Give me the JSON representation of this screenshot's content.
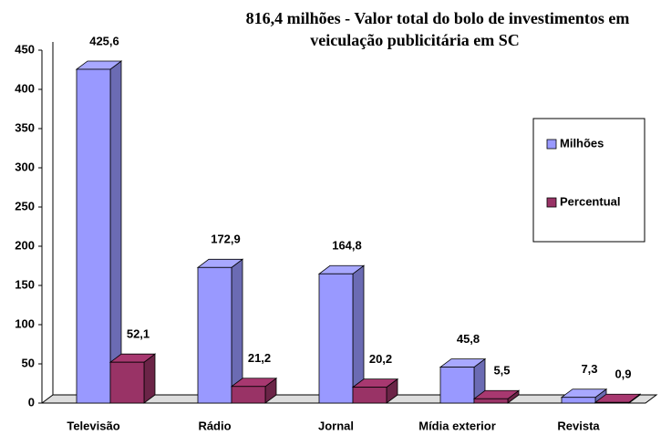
{
  "chart_data": {
    "type": "bar3d",
    "title": [
      "816,4 milhões - Valor total do bolo de investimentos em",
      "veiculação publicitária em SC"
    ],
    "categories": [
      "Televisão",
      "Rádio",
      "Jornal",
      "Mídia exterior",
      "Revista"
    ],
    "series": [
      {
        "name": "Milhões",
        "color": "#9999ff",
        "values": [
          425.6,
          172.9,
          164.8,
          45.8,
          7.3
        ],
        "value_labels": [
          "425,6",
          "172,9",
          "164,8",
          "45,8",
          "7,3"
        ]
      },
      {
        "name": "Percentual",
        "color": "#993366",
        "values": [
          52.1,
          21.2,
          20.2,
          5.5,
          0.9
        ],
        "value_labels": [
          "52,1",
          "21,2",
          "20,2",
          "5,5",
          "0,9"
        ]
      }
    ],
    "ylim": [
      0,
      450
    ],
    "yticks": [
      0,
      50,
      100,
      150,
      200,
      250,
      300,
      350,
      400,
      450
    ],
    "grid": false,
    "legend": "right"
  }
}
